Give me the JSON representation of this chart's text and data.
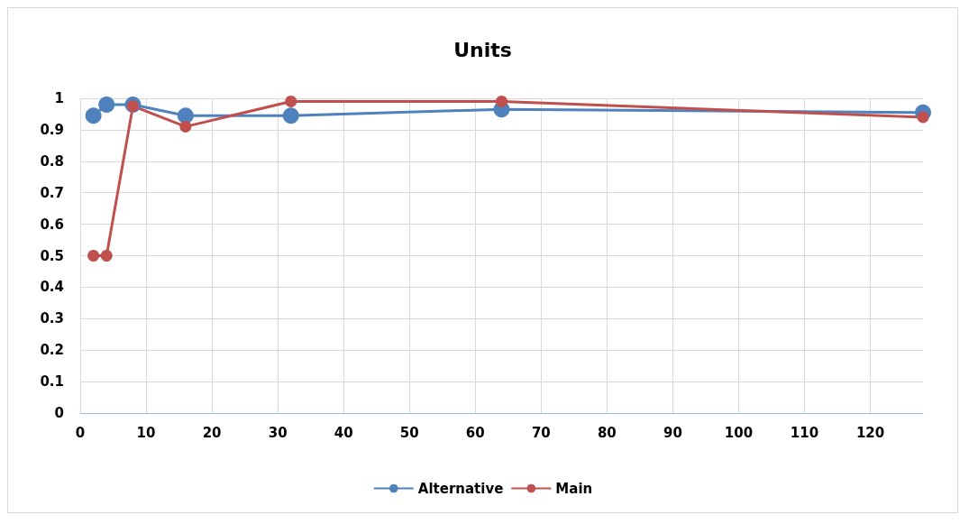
{
  "chart_data": {
    "type": "line",
    "title": "Units",
    "x": [
      2,
      4,
      8,
      16,
      32,
      64,
      128
    ],
    "series": [
      {
        "name": "Alternative",
        "color": "#4f81bd",
        "values": [
          0.945,
          0.98,
          0.98,
          0.945,
          0.945,
          0.965,
          0.955
        ]
      },
      {
        "name": "Main",
        "color": "#c0504d",
        "values": [
          0.5,
          0.5,
          0.975,
          0.91,
          0.99,
          0.99,
          0.94
        ]
      }
    ],
    "xlim": [
      0,
      128
    ],
    "xticks": [
      0,
      10,
      20,
      30,
      40,
      50,
      60,
      70,
      80,
      90,
      100,
      110,
      120
    ],
    "ylim": [
      0,
      1
    ],
    "yticks": [
      0,
      0.1,
      0.2,
      0.3,
      0.4,
      0.5,
      0.6,
      0.7,
      0.8,
      0.9,
      1
    ],
    "grid": true,
    "legend": "bottom",
    "marker": "circle",
    "line_style": "solid"
  }
}
